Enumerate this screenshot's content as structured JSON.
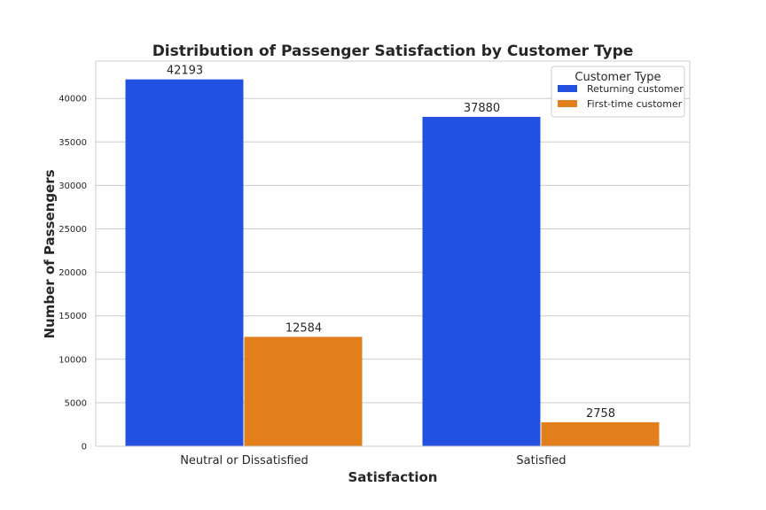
{
  "chart_data": {
    "type": "bar",
    "title": "Distribution of Passenger Satisfaction by Customer Type",
    "xlabel": "Satisfaction",
    "ylabel": "Number of Passengers",
    "categories": [
      "Neutral or Dissatisfied",
      "Satisfied"
    ],
    "series": [
      {
        "name": "Returning customer",
        "values": [
          42193,
          37880
        ],
        "color": "#2251e2"
      },
      {
        "name": "First-time customer",
        "values": [
          12584,
          2758
        ],
        "color": "#e37e1c"
      }
    ],
    "ylim": [
      0,
      44297
    ],
    "yticks": [
      0,
      5000,
      10000,
      15000,
      20000,
      25000,
      30000,
      35000,
      40000
    ],
    "grid": true,
    "legend": {
      "title": "Customer Type",
      "placement": "top-right"
    }
  }
}
